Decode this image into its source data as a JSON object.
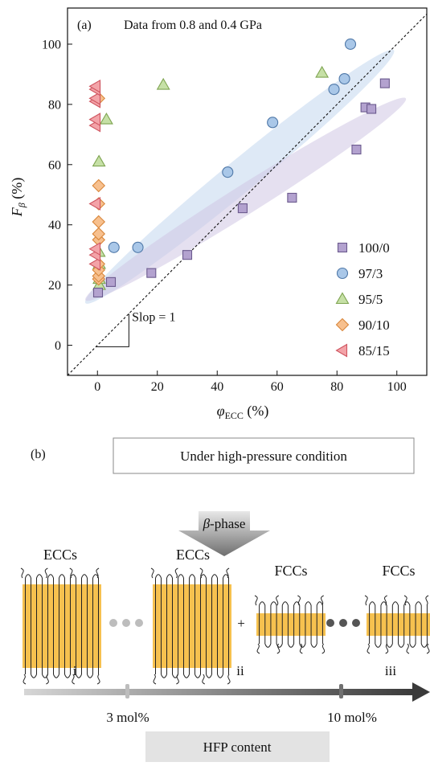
{
  "panel_a": {
    "label": "(a)",
    "annotation": "Data from 0.8 and 0.4 GPa",
    "ylabel_main": "F",
    "ylabel_sub": "β",
    "ylabel_unit": " (%)",
    "xlabel_main": "φ",
    "xlabel_sub": "ECC",
    "xlabel_unit": " (%)",
    "slope_label": "Slop = 1"
  },
  "chart_data": {
    "type": "scatter",
    "xlim": [
      -10,
      110
    ],
    "ylim": [
      -10,
      112
    ],
    "x_ticks": [
      0,
      20,
      40,
      60,
      80,
      100
    ],
    "y_ticks": [
      0,
      20,
      40,
      60,
      80,
      100
    ],
    "x_tick_labels": [
      "0",
      "20",
      "40",
      "60",
      "80",
      "100"
    ],
    "y_tick_labels": [
      "0",
      "20",
      "40",
      "60",
      "80",
      "100"
    ],
    "grid": false,
    "legend_position": "bottom-right",
    "reference_line": "y = x",
    "series": [
      {
        "name": "100/0",
        "marker": "square",
        "color": "#b3a2cf",
        "x": [
          0.2,
          4.5,
          18,
          30,
          48.5,
          65,
          86.5,
          89.5,
          91.5,
          96
        ],
        "y": [
          17.5,
          21,
          24,
          30,
          45.5,
          49,
          65,
          79,
          78.5,
          87
        ]
      },
      {
        "name": "97/3",
        "marker": "circle",
        "color": "#a9c7e8",
        "x": [
          5.5,
          13.5,
          43.5,
          58.5,
          79,
          82.5,
          84.5
        ],
        "y": [
          32.5,
          32.5,
          57.5,
          74,
          85,
          88.5,
          100
        ]
      },
      {
        "name": "95/5",
        "marker": "triangle-up",
        "color": "#c6e0a6",
        "x": [
          0,
          0,
          0,
          0.5,
          0.5,
          3,
          22,
          75
        ],
        "y": [
          20,
          22,
          27,
          31,
          61,
          75,
          86.5,
          90.5
        ]
      },
      {
        "name": "90/10",
        "marker": "diamond",
        "color": "#f7c08e",
        "x": [
          0,
          0,
          0,
          0,
          0,
          0,
          0,
          0,
          0,
          0
        ],
        "y": [
          22,
          23,
          25,
          27,
          35,
          37,
          41,
          47,
          53,
          82
        ]
      },
      {
        "name": "85/15",
        "marker": "triangle-left",
        "color": "#f3a3a8",
        "x": [
          0,
          0,
          0,
          0,
          0,
          0,
          0,
          0,
          0,
          0
        ],
        "y": [
          27,
          30,
          32,
          47,
          73,
          75,
          81,
          82,
          85,
          86
        ]
      }
    ]
  },
  "panel_b": {
    "label": "(b)",
    "condition_box": "Under high-pressure condition",
    "arrow_label_symbol": "β",
    "arrow_label_rest": "-phase",
    "ecc_label_1": "ECCs",
    "ecc_label_2": "ECCs",
    "fcc_label_1": "FCCs",
    "fcc_label_2": "FCCs",
    "plus_sign": "+",
    "stage_i": "i",
    "stage_ii": "ii",
    "stage_iii": "iii",
    "marker_1": "3 mol%",
    "marker_2": "10 mol%",
    "axis_label": "HFP content",
    "colors": {
      "crystal": "#f6c14f",
      "chain": "#222222",
      "dots_light": "#bdbdbd",
      "dots_dark": "#555555",
      "axis_start": "#d0d0d0",
      "axis_end": "#3a3a3a",
      "label_box": "#e3e3e3"
    }
  }
}
